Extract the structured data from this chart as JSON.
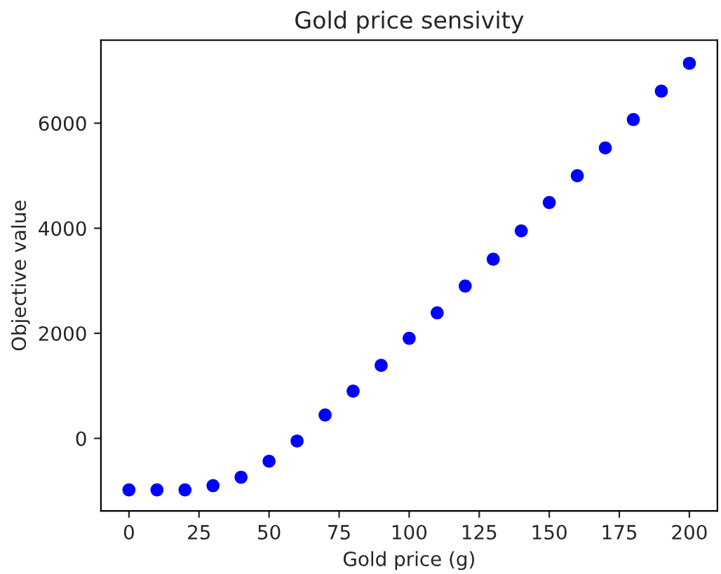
{
  "chart_data": {
    "type": "scatter",
    "title": "Gold price sensivity",
    "xlabel": "Gold price (g)",
    "ylabel": "Objective value",
    "x": [
      0,
      10,
      20,
      30,
      40,
      50,
      60,
      70,
      80,
      90,
      100,
      110,
      120,
      130,
      140,
      150,
      160,
      170,
      180,
      190,
      200
    ],
    "series": [
      {
        "color": "#0000ff",
        "values": [
          -980,
          -980,
          -980,
          -900,
          -740,
          -435,
          -50,
          445,
          900,
          1390,
          1905,
          2390,
          2900,
          3410,
          3950,
          4490,
          5000,
          5530,
          6070,
          6610,
          7140
        ]
      }
    ],
    "xlim": [
      -10,
      210
    ],
    "ylim": [
      -1380,
      7580
    ],
    "xticks": [
      0,
      25,
      50,
      75,
      100,
      125,
      150,
      175,
      200
    ],
    "yticks": [
      0,
      2000,
      4000,
      6000
    ],
    "marker": "circle",
    "grid": false,
    "legend": false
  }
}
